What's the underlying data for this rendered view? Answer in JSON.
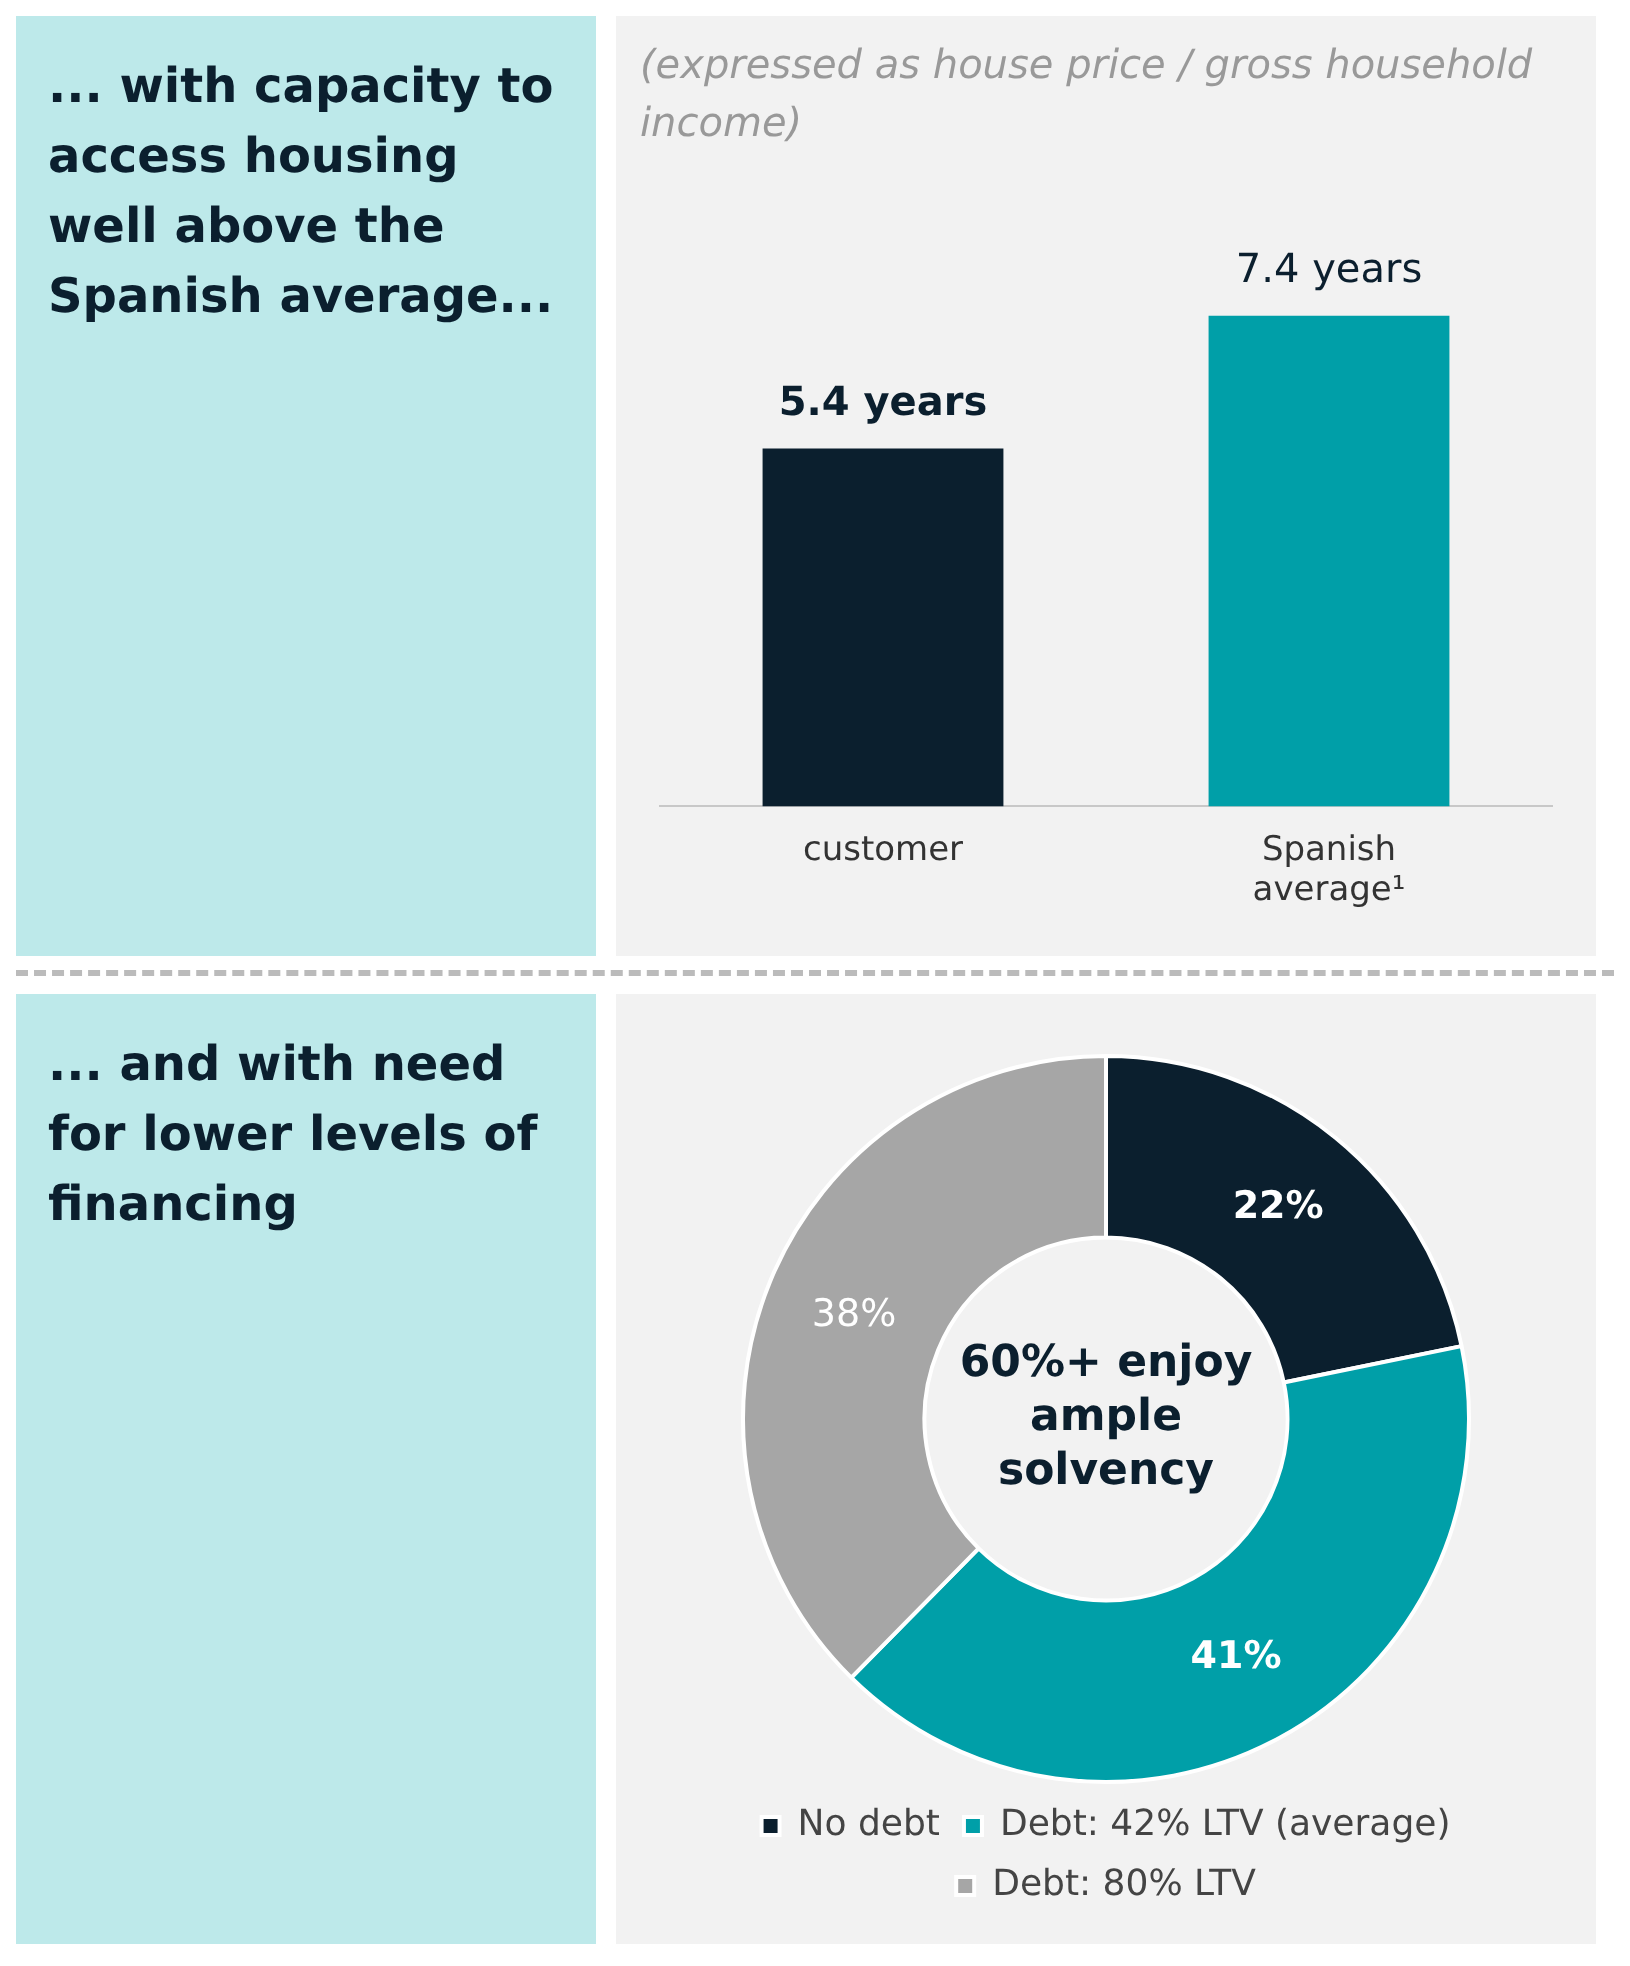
{
  "chart_data": [
    {
      "type": "bar",
      "title": "... with capacity to access housing well above the Spanish average...",
      "subtitle": "(expressed as house price / gross household income)",
      "categories": [
        "customer",
        "Spanish average¹"
      ],
      "values": [
        5.4,
        7.4
      ],
      "colors": [
        "#0b1f2e",
        "#009fa8"
      ],
      "value_labels": [
        "5.4 years",
        "7.4 years"
      ]
    },
    {
      "type": "donut",
      "title": "... and with need for lower levels of financing",
      "categories": [
        "No debt",
        "Debt: 42% LTV (average)",
        "Debt: 80% LTV"
      ],
      "values": [
        22,
        41,
        38
      ],
      "colors": [
        "#0b1f2e",
        "#009fa8",
        "#a6a6a6"
      ],
      "value_labels": [
        "22%",
        "41%",
        "38%"
      ],
      "annotations": [
        "60%+ enjoy ample solvency"
      ],
      "legend": "bottom"
    }
  ]
}
